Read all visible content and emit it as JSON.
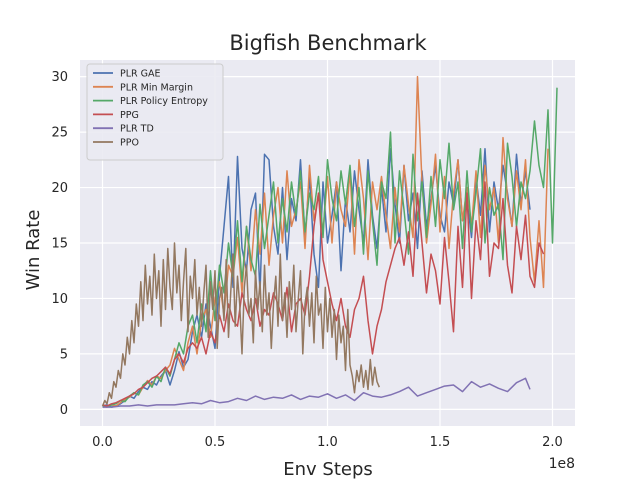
{
  "chart_data": {
    "type": "line",
    "title": "Bigfish Benchmark",
    "xlabel": "Env Steps",
    "ylabel": "Win Rate",
    "x_scale_label": "1e8",
    "x_scale": 100000000,
    "xlim": [
      -0.1,
      2.1
    ],
    "ylim": [
      -1.5,
      31.5
    ],
    "x_ticks": [
      0.0,
      0.5,
      1.0,
      1.5,
      2.0
    ],
    "x_tick_labels": [
      "0.0",
      "0.5",
      "1.0",
      "1.5",
      "2.0"
    ],
    "y_ticks": [
      0,
      5,
      10,
      15,
      20,
      25,
      30
    ],
    "y_tick_labels": [
      "0",
      "5",
      "10",
      "15",
      "20",
      "25",
      "30"
    ],
    "grid": true,
    "legend_position": "top-left",
    "series": [
      {
        "name": "PLR GAE",
        "color": "#4c72b0",
        "x": [
          0.0,
          0.02,
          0.04,
          0.06,
          0.08,
          0.1,
          0.12,
          0.14,
          0.16,
          0.18,
          0.2,
          0.22,
          0.24,
          0.26,
          0.28,
          0.3,
          0.32,
          0.34,
          0.36,
          0.38,
          0.4,
          0.42,
          0.44,
          0.46,
          0.48,
          0.5,
          0.52,
          0.54,
          0.56,
          0.58,
          0.6,
          0.62,
          0.64,
          0.66,
          0.68,
          0.7,
          0.72,
          0.74,
          0.76,
          0.78,
          0.8,
          0.82,
          0.84,
          0.86,
          0.88,
          0.9,
          0.92,
          0.94,
          0.96,
          0.98,
          1.0,
          1.02,
          1.04,
          1.06,
          1.08,
          1.1,
          1.12,
          1.14,
          1.16,
          1.18,
          1.2,
          1.22,
          1.24,
          1.26,
          1.28,
          1.3,
          1.32,
          1.34,
          1.36,
          1.38,
          1.4,
          1.42,
          1.44,
          1.46,
          1.48,
          1.5,
          1.52,
          1.54,
          1.56,
          1.58,
          1.6,
          1.62,
          1.64,
          1.66,
          1.68,
          1.7,
          1.72,
          1.74,
          1.76,
          1.78,
          1.8,
          1.82,
          1.84,
          1.86,
          1.88,
          1.9
        ],
        "y": [
          0.3,
          0.4,
          0.2,
          0.3,
          0.5,
          0.8,
          1.2,
          1.0,
          1.6,
          2.0,
          1.8,
          2.5,
          2.2,
          3.0,
          3.5,
          2.2,
          3.5,
          5.2,
          3.8,
          4.5,
          7.0,
          8.5,
          6.5,
          9.5,
          7.5,
          5.5,
          12.0,
          16.5,
          21.0,
          11.0,
          22.8,
          14.5,
          12.5,
          18.0,
          19.5,
          10.5,
          23.0,
          22.5,
          16.5,
          14.0,
          20.0,
          13.5,
          19.0,
          17.0,
          22.5,
          15.5,
          21.0,
          14.0,
          11.0,
          20.5,
          15.0,
          17.5,
          20.5,
          12.5,
          19.0,
          16.0,
          21.5,
          18.0,
          15.0,
          22.5,
          17.5,
          14.5,
          20.0,
          16.0,
          23.5,
          18.5,
          15.0,
          22.0,
          17.0,
          19.5,
          14.5,
          21.5,
          16.5,
          19.0,
          22.0,
          17.5,
          16.0,
          20.5,
          18.5,
          22.5,
          17.0,
          19.0,
          15.5,
          21.0,
          17.5,
          23.5,
          16.0,
          20.5,
          18.0,
          22.0,
          19.5,
          16.5,
          23.0,
          18.5,
          21.5,
          18.0
        ]
      },
      {
        "name": "PLR Min Margin",
        "color": "#dd8452",
        "x": [
          0.0,
          0.02,
          0.04,
          0.06,
          0.08,
          0.1,
          0.12,
          0.14,
          0.16,
          0.18,
          0.2,
          0.22,
          0.24,
          0.26,
          0.28,
          0.3,
          0.32,
          0.34,
          0.36,
          0.38,
          0.4,
          0.42,
          0.44,
          0.46,
          0.48,
          0.5,
          0.52,
          0.54,
          0.56,
          0.58,
          0.6,
          0.62,
          0.64,
          0.66,
          0.68,
          0.7,
          0.72,
          0.74,
          0.76,
          0.78,
          0.8,
          0.82,
          0.84,
          0.86,
          0.88,
          0.9,
          0.92,
          0.94,
          0.96,
          0.98,
          1.0,
          1.02,
          1.04,
          1.06,
          1.08,
          1.1,
          1.12,
          1.14,
          1.16,
          1.18,
          1.2,
          1.22,
          1.24,
          1.26,
          1.28,
          1.3,
          1.32,
          1.34,
          1.36,
          1.38,
          1.4,
          1.42,
          1.44,
          1.46,
          1.48,
          1.5,
          1.52,
          1.54,
          1.56,
          1.58,
          1.6,
          1.62,
          1.64,
          1.66,
          1.68,
          1.7,
          1.72,
          1.74,
          1.76,
          1.78,
          1.8,
          1.82,
          1.84,
          1.86,
          1.88,
          1.9,
          1.92,
          1.94,
          1.96,
          1.98
        ],
        "y": [
          0.2,
          0.3,
          0.4,
          0.3,
          0.6,
          0.9,
          1.1,
          1.5,
          1.3,
          2.0,
          2.6,
          2.2,
          3.0,
          2.8,
          3.5,
          4.0,
          5.5,
          4.5,
          3.5,
          6.0,
          7.5,
          5.0,
          8.0,
          9.0,
          6.5,
          10.0,
          11.5,
          8.5,
          13.0,
          12.0,
          15.5,
          10.5,
          16.5,
          12.5,
          18.0,
          14.0,
          19.5,
          13.0,
          17.5,
          20.0,
          15.0,
          21.5,
          16.5,
          18.0,
          20.5,
          14.5,
          22.0,
          17.0,
          19.5,
          16.0,
          21.0,
          15.0,
          20.5,
          18.0,
          16.5,
          21.5,
          14.0,
          22.5,
          19.0,
          13.5,
          20.5,
          18.0,
          21.0,
          17.5,
          14.5,
          20.0,
          16.0,
          22.0,
          18.5,
          15.5,
          30.0,
          20.5,
          15.0,
          18.5,
          23.0,
          16.0,
          21.0,
          14.5,
          19.5,
          22.5,
          17.0,
          20.0,
          16.5,
          21.5,
          15.5,
          22.0,
          18.0,
          20.0,
          15.0,
          24.5,
          19.0,
          16.5,
          21.5,
          18.0,
          22.5,
          15.5,
          11.5,
          17.0,
          11.0,
          23.5
        ]
      },
      {
        "name": "PLR Policy Entropy",
        "color": "#55a868",
        "x": [
          0.0,
          0.02,
          0.04,
          0.06,
          0.08,
          0.1,
          0.12,
          0.14,
          0.16,
          0.18,
          0.2,
          0.22,
          0.24,
          0.26,
          0.28,
          0.3,
          0.32,
          0.34,
          0.36,
          0.38,
          0.4,
          0.42,
          0.44,
          0.46,
          0.48,
          0.5,
          0.52,
          0.54,
          0.56,
          0.58,
          0.6,
          0.62,
          0.64,
          0.66,
          0.68,
          0.7,
          0.72,
          0.74,
          0.76,
          0.78,
          0.8,
          0.82,
          0.84,
          0.86,
          0.88,
          0.9,
          0.92,
          0.94,
          0.96,
          0.98,
          1.0,
          1.02,
          1.04,
          1.06,
          1.08,
          1.1,
          1.12,
          1.14,
          1.16,
          1.18,
          1.2,
          1.22,
          1.24,
          1.26,
          1.28,
          1.3,
          1.32,
          1.34,
          1.36,
          1.38,
          1.4,
          1.42,
          1.44,
          1.46,
          1.48,
          1.5,
          1.52,
          1.54,
          1.56,
          1.58,
          1.6,
          1.62,
          1.64,
          1.66,
          1.68,
          1.7,
          1.72,
          1.74,
          1.76,
          1.78,
          1.8,
          1.82,
          1.84,
          1.86,
          1.88,
          1.9,
          1.92,
          1.94,
          1.96,
          1.98,
          2.0,
          2.02
        ],
        "y": [
          0.3,
          0.2,
          0.4,
          0.5,
          0.8,
          0.7,
          1.2,
          1.5,
          1.3,
          2.2,
          2.5,
          2.0,
          3.0,
          2.5,
          3.8,
          3.0,
          4.5,
          6.0,
          5.0,
          7.5,
          8.5,
          6.0,
          9.5,
          7.0,
          12.5,
          8.0,
          13.0,
          10.5,
          15.0,
          12.0,
          17.0,
          11.5,
          16.5,
          13.5,
          12.0,
          18.5,
          14.5,
          17.5,
          20.5,
          15.0,
          19.0,
          16.0,
          20.5,
          17.5,
          21.5,
          16.0,
          19.5,
          18.0,
          21.0,
          15.5,
          22.5,
          19.0,
          17.0,
          21.5,
          18.5,
          22.0,
          16.5,
          20.0,
          14.0,
          21.5,
          17.0,
          13.0,
          20.5,
          19.0,
          25.0,
          15.0,
          21.5,
          18.0,
          14.0,
          23.0,
          17.0,
          20.5,
          15.5,
          21.0,
          16.5,
          22.5,
          19.0,
          24.0,
          18.0,
          20.5,
          14.5,
          21.5,
          16.0,
          19.5,
          23.5,
          15.0,
          20.0,
          17.5,
          18.5,
          13.5,
          24.0,
          21.0,
          16.5,
          20.5,
          19.0,
          21.5,
          26.0,
          22.0,
          20.0,
          27.0,
          15.0,
          29.0
        ]
      },
      {
        "name": "PPG",
        "color": "#c44e52",
        "x": [
          0.0,
          0.02,
          0.04,
          0.06,
          0.08,
          0.1,
          0.12,
          0.14,
          0.16,
          0.18,
          0.2,
          0.22,
          0.24,
          0.26,
          0.28,
          0.3,
          0.32,
          0.34,
          0.36,
          0.38,
          0.4,
          0.42,
          0.44,
          0.46,
          0.48,
          0.5,
          0.52,
          0.54,
          0.56,
          0.58,
          0.6,
          0.62,
          0.64,
          0.66,
          0.68,
          0.7,
          0.72,
          0.74,
          0.76,
          0.78,
          0.8,
          0.82,
          0.84,
          0.86,
          0.88,
          0.9,
          0.92,
          0.94,
          0.96,
          0.98,
          1.0,
          1.02,
          1.04,
          1.06,
          1.08,
          1.1,
          1.12,
          1.14,
          1.16,
          1.18,
          1.2,
          1.22,
          1.24,
          1.26,
          1.28,
          1.3,
          1.32,
          1.34,
          1.36,
          1.38,
          1.4,
          1.42,
          1.44,
          1.46,
          1.48,
          1.5,
          1.52,
          1.54,
          1.56,
          1.58,
          1.6,
          1.62,
          1.64,
          1.66,
          1.68,
          1.7,
          1.72,
          1.74,
          1.76,
          1.78,
          1.8,
          1.82,
          1.84,
          1.86,
          1.88,
          1.9,
          1.92,
          1.94,
          1.96
        ],
        "y": [
          0.4,
          0.3,
          0.5,
          0.6,
          0.8,
          1.0,
          1.2,
          1.4,
          1.8,
          2.0,
          2.4,
          2.8,
          3.0,
          3.4,
          3.8,
          3.2,
          4.5,
          5.0,
          4.2,
          5.5,
          6.0,
          5.5,
          6.5,
          5.0,
          7.0,
          6.0,
          8.5,
          7.0,
          9.5,
          8.0,
          7.5,
          10.5,
          9.0,
          8.0,
          10.0,
          7.5,
          9.0,
          8.5,
          10.5,
          9.5,
          8.0,
          11.0,
          7.0,
          9.5,
          10.0,
          8.5,
          12.0,
          16.5,
          19.5,
          13.5,
          11.5,
          9.5,
          8.0,
          10.0,
          7.5,
          6.5,
          9.0,
          10.0,
          12.0,
          8.0,
          5.0,
          7.5,
          9.0,
          11.5,
          13.0,
          14.5,
          15.5,
          13.0,
          16.0,
          12.0,
          19.5,
          15.0,
          10.5,
          14.0,
          12.5,
          9.5,
          15.5,
          11.5,
          7.0,
          16.5,
          11.0,
          19.5,
          10.0,
          17.0,
          13.5,
          20.5,
          12.0,
          15.0,
          14.5,
          19.0,
          13.0,
          10.5,
          16.5,
          13.5,
          17.5,
          12.0,
          11.0,
          15.0,
          14.0
        ]
      },
      {
        "name": "PLR TD",
        "color": "#8172b3",
        "x": [
          0.0,
          0.04,
          0.08,
          0.12,
          0.16,
          0.2,
          0.24,
          0.28,
          0.32,
          0.36,
          0.4,
          0.44,
          0.48,
          0.52,
          0.56,
          0.6,
          0.64,
          0.68,
          0.72,
          0.76,
          0.8,
          0.84,
          0.88,
          0.92,
          0.96,
          1.0,
          1.04,
          1.08,
          1.12,
          1.16,
          1.2,
          1.24,
          1.28,
          1.32,
          1.36,
          1.4,
          1.44,
          1.48,
          1.52,
          1.56,
          1.6,
          1.64,
          1.68,
          1.72,
          1.76,
          1.8,
          1.84,
          1.88,
          1.9
        ],
        "y": [
          0.2,
          0.2,
          0.3,
          0.3,
          0.4,
          0.3,
          0.4,
          0.4,
          0.4,
          0.5,
          0.6,
          0.5,
          0.8,
          0.6,
          0.7,
          1.0,
          0.8,
          1.2,
          0.9,
          1.1,
          1.0,
          1.3,
          0.9,
          1.2,
          1.1,
          1.4,
          1.0,
          1.3,
          0.8,
          1.5,
          1.2,
          1.1,
          1.3,
          1.6,
          2.0,
          1.2,
          1.5,
          1.8,
          2.1,
          2.2,
          1.6,
          2.5,
          2.0,
          2.3,
          1.9,
          1.6,
          2.4,
          2.8,
          1.8
        ]
      },
      {
        "name": "PPO",
        "color": "#937860",
        "x": [
          0.0,
          0.01,
          0.02,
          0.03,
          0.04,
          0.05,
          0.06,
          0.07,
          0.08,
          0.09,
          0.1,
          0.11,
          0.12,
          0.13,
          0.14,
          0.15,
          0.16,
          0.17,
          0.18,
          0.19,
          0.2,
          0.21,
          0.22,
          0.23,
          0.24,
          0.25,
          0.26,
          0.27,
          0.28,
          0.29,
          0.3,
          0.31,
          0.32,
          0.33,
          0.34,
          0.35,
          0.36,
          0.37,
          0.38,
          0.39,
          0.4,
          0.41,
          0.42,
          0.43,
          0.44,
          0.45,
          0.46,
          0.47,
          0.48,
          0.49,
          0.5,
          0.51,
          0.52,
          0.53,
          0.54,
          0.55,
          0.56,
          0.57,
          0.58,
          0.59,
          0.6,
          0.61,
          0.62,
          0.63,
          0.64,
          0.65,
          0.66,
          0.67,
          0.68,
          0.69,
          0.7,
          0.71,
          0.72,
          0.73,
          0.74,
          0.75,
          0.76,
          0.77,
          0.78,
          0.79,
          0.8,
          0.81,
          0.82,
          0.83,
          0.84,
          0.85,
          0.86,
          0.87,
          0.88,
          0.89,
          0.9,
          0.91,
          0.92,
          0.93,
          0.94,
          0.95,
          0.96,
          0.97,
          0.98,
          0.99,
          1.0,
          1.01,
          1.02,
          1.03,
          1.04,
          1.05,
          1.06,
          1.07,
          1.08,
          1.09,
          1.1,
          1.11,
          1.12,
          1.13,
          1.14,
          1.15,
          1.16,
          1.17,
          1.18,
          1.19,
          1.2,
          1.21,
          1.22,
          1.23
        ],
        "y": [
          0.3,
          0.8,
          0.5,
          1.5,
          1.0,
          2.5,
          2.0,
          3.5,
          2.8,
          5.0,
          4.0,
          6.5,
          5.0,
          8.0,
          6.0,
          9.5,
          7.5,
          11.5,
          8.0,
          13.0,
          9.5,
          12.0,
          8.5,
          14.0,
          10.0,
          12.5,
          7.5,
          13.5,
          9.0,
          14.5,
          11.0,
          9.0,
          15.0,
          10.5,
          13.0,
          8.0,
          11.5,
          14.5,
          7.0,
          12.0,
          10.0,
          13.5,
          8.5,
          11.0,
          7.5,
          10.5,
          13.0,
          6.5,
          11.5,
          9.0,
          12.5,
          5.5,
          10.0,
          11.0,
          8.0,
          13.5,
          6.5,
          10.5,
          14.0,
          7.5,
          12.0,
          9.5,
          5.0,
          11.0,
          13.0,
          8.5,
          10.0,
          6.0,
          12.5,
          9.0,
          11.5,
          7.0,
          13.0,
          8.5,
          10.5,
          5.5,
          9.5,
          12.0,
          7.5,
          14.0,
          8.0,
          10.5,
          6.5,
          11.5,
          9.0,
          13.0,
          7.0,
          10.0,
          12.5,
          5.0,
          9.5,
          11.0,
          7.5,
          10.5,
          6.0,
          12.0,
          8.5,
          9.5,
          5.5,
          11.0,
          7.0,
          10.0,
          6.5,
          9.0,
          4.5,
          8.5,
          6.0,
          7.5,
          3.5,
          9.0,
          4.0,
          3.0,
          1.5,
          3.5,
          2.5,
          4.0,
          2.0,
          3.5,
          1.8,
          4.5,
          2.2,
          3.8,
          2.5,
          2.0
        ]
      }
    ]
  }
}
